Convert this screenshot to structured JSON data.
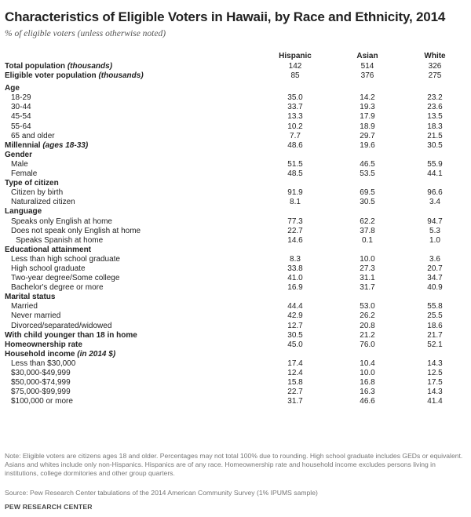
{
  "title": "Characteristics of Eligible Voters in Hawaii, by Race and Ethnicity, 2014",
  "subtitle": "% of eligible voters (unless otherwise noted)",
  "columns": [
    "Hispanic",
    "Asian",
    "White"
  ],
  "top_rows": [
    {
      "label": "Total population ",
      "label_italic": "(thousands)",
      "values": [
        "142",
        "514",
        "326"
      ]
    },
    {
      "label": "Eligible voter population ",
      "label_italic": "(thousands)",
      "values": [
        "85",
        "376",
        "275"
      ]
    }
  ],
  "sections": [
    {
      "heading": "Age",
      "rows": [
        {
          "label": "18-29",
          "values": [
            "35.0",
            "14.2",
            "23.2"
          ]
        },
        {
          "label": "30-44",
          "values": [
            "33.7",
            "19.3",
            "23.6"
          ]
        },
        {
          "label": "45-54",
          "values": [
            "13.3",
            "17.9",
            "13.5"
          ]
        },
        {
          "label": "55-64",
          "values": [
            "10.2",
            "18.9",
            "18.3"
          ]
        },
        {
          "label": "65 and older",
          "values": [
            "7.7",
            "29.7",
            "21.5"
          ]
        }
      ]
    },
    {
      "heading": "Millennial ",
      "heading_italic": "(ages 18-33)",
      "values": [
        "48.6",
        "19.6",
        "30.5"
      ],
      "rows": []
    },
    {
      "heading": "Gender",
      "rows": [
        {
          "label": "Male",
          "values": [
            "51.5",
            "46.5",
            "55.9"
          ]
        },
        {
          "label": "Female",
          "values": [
            "48.5",
            "53.5",
            "44.1"
          ]
        }
      ]
    },
    {
      "heading": "Type of citizen",
      "rows": [
        {
          "label": "Citizen by birth",
          "values": [
            "91.9",
            "69.5",
            "96.6"
          ]
        },
        {
          "label": "Naturalized citizen",
          "values": [
            "8.1",
            "30.5",
            "3.4"
          ]
        }
      ]
    },
    {
      "heading": "Language",
      "rows": [
        {
          "label": "Speaks only English at home",
          "values": [
            "77.3",
            "62.2",
            "94.7"
          ]
        },
        {
          "label": "Does not speak only English at home",
          "values": [
            "22.7",
            "37.8",
            "5.3"
          ]
        },
        {
          "label": "Speaks Spanish at home",
          "values": [
            "14.6",
            "0.1",
            "1.0"
          ],
          "indent": 2
        }
      ]
    },
    {
      "heading": "Educational attainment",
      "rows": [
        {
          "label": "Less than high school graduate",
          "values": [
            "8.3",
            "10.0",
            "3.6"
          ]
        },
        {
          "label": "High school graduate",
          "values": [
            "33.8",
            "27.3",
            "20.7"
          ]
        },
        {
          "label": "Two-year degree/Some college",
          "values": [
            "41.0",
            "31.1",
            "34.7"
          ]
        },
        {
          "label": "Bachelor's degree or more",
          "values": [
            "16.9",
            "31.7",
            "40.9"
          ]
        }
      ]
    },
    {
      "heading": "Marital status",
      "rows": [
        {
          "label": "Married",
          "values": [
            "44.4",
            "53.0",
            "55.8"
          ]
        },
        {
          "label": "Never married",
          "values": [
            "42.9",
            "26.2",
            "25.5"
          ]
        },
        {
          "label": "Divorced/separated/widowed",
          "values": [
            "12.7",
            "20.8",
            "18.6"
          ]
        }
      ]
    },
    {
      "heading": "With child younger than 18 in home",
      "values": [
        "30.5",
        "21.2",
        "21.7"
      ],
      "rows": []
    },
    {
      "heading": "Homeownership rate",
      "values": [
        "45.0",
        "76.0",
        "52.1"
      ],
      "rows": []
    },
    {
      "heading": "Household income ",
      "heading_italic": "(in 2014 $)",
      "rows": [
        {
          "label": "Less than $30,000",
          "values": [
            "17.4",
            "10.4",
            "14.3"
          ]
        },
        {
          "label": "$30,000-$49,999",
          "values": [
            "12.4",
            "10.0",
            "12.5"
          ]
        },
        {
          "label": "$50,000-$74,999",
          "values": [
            "15.8",
            "16.8",
            "17.5"
          ]
        },
        {
          "label": "$75,000-$99,999",
          "values": [
            "22.7",
            "16.3",
            "14.3"
          ]
        },
        {
          "label": "$100,000 or more",
          "values": [
            "31.7",
            "46.6",
            "41.4"
          ]
        }
      ]
    }
  ],
  "note": "Note: Eligible voters are citizens ages 18 and older. Percentages may not total 100% due to rounding. High school graduate includes GEDs or equivalent. Asians and whites include only non-Hispanics. Hispanics are of any race. Homeownership rate and household income excludes persons living in institutions, college dormitories and other group quarters.",
  "source": "Source: Pew Research Center tabulations of the 2014 American Community Survey (1% IPUMS sample)",
  "brand": "PEW RESEARCH CENTER"
}
